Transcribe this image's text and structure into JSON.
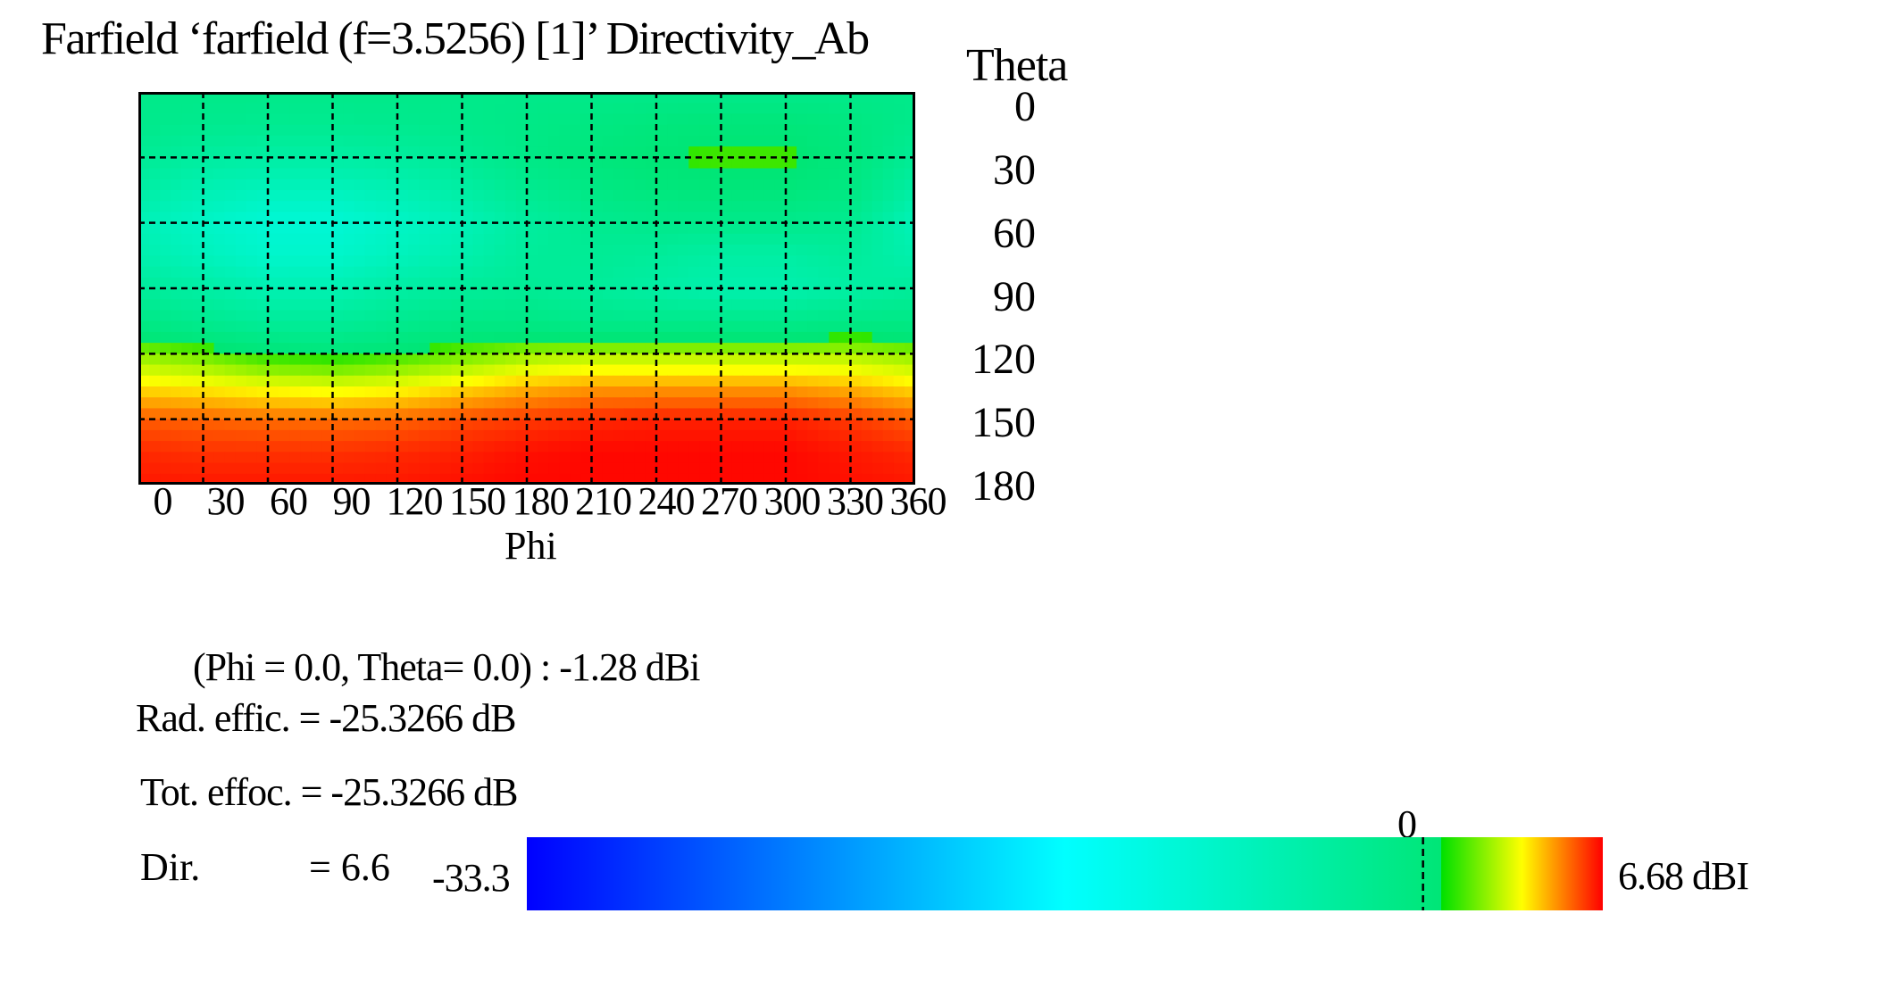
{
  "chart_data": {
    "type": "heatmap",
    "title": "Farfield ‘farfield (f=3.5256) [1]’ Directivity_Ab",
    "xlabel": "Phi",
    "ylabel": "Theta",
    "x_ticks": [
      "0",
      "30",
      "60",
      "90",
      "120",
      "150",
      "180",
      "210",
      "240",
      "270",
      "300",
      "330",
      "360"
    ],
    "y_ticks": [
      "0",
      "30",
      "60",
      "90",
      "120",
      "150",
      "180"
    ],
    "xlim": [
      0,
      360
    ],
    "ylim": [
      0,
      180
    ],
    "grid": true,
    "grid_style": "dashed",
    "x_phi": [
      0,
      30,
      60,
      90,
      120,
      150,
      180,
      210,
      240,
      270,
      300,
      330,
      360
    ],
    "y_theta": [
      0,
      15,
      30,
      45,
      60,
      75,
      90,
      105,
      120,
      135,
      150,
      165,
      180
    ],
    "z_dbi": [
      [
        -1.3,
        -1.3,
        -1.3,
        -1.3,
        -1.3,
        -1.3,
        -1.3,
        -1.3,
        -1.3,
        -1.3,
        -1.3,
        -1.3,
        -1.3
      ],
      [
        -1.5,
        -1.8,
        -2.0,
        -2.0,
        -1.8,
        -1.5,
        -1.0,
        -0.5,
        0.0,
        0.3,
        0.3,
        -0.3,
        -1.5
      ],
      [
        -2.5,
        -3.5,
        -4.0,
        -4.0,
        -3.5,
        -2.5,
        -1.0,
        0.0,
        0.6,
        1.0,
        1.0,
        0.0,
        -2.5
      ],
      [
        -4.0,
        -5.5,
        -6.5,
        -6.5,
        -5.5,
        -4.0,
        -2.0,
        -0.8,
        0.0,
        0.3,
        0.3,
        -0.5,
        -4.0
      ],
      [
        -6.0,
        -7.5,
        -9.0,
        -9.0,
        -7.5,
        -6.0,
        -3.5,
        -2.0,
        -1.5,
        -1.5,
        -1.5,
        -2.0,
        -6.0
      ],
      [
        -5.0,
        -6.5,
        -8.0,
        -8.0,
        -6.5,
        -5.0,
        -3.0,
        -2.5,
        -3.0,
        -4.0,
        -4.0,
        -3.0,
        -5.0
      ],
      [
        -3.0,
        -4.0,
        -5.5,
        -5.5,
        -4.0,
        -3.0,
        -2.5,
        -3.0,
        -4.0,
        -5.0,
        -5.0,
        -4.0,
        -3.0
      ],
      [
        -1.0,
        -2.0,
        -3.0,
        -3.0,
        -2.0,
        -1.0,
        -1.0,
        -1.5,
        -1.5,
        -1.5,
        -1.5,
        -1.0,
        -1.0
      ],
      [
        2.0,
        1.5,
        0.5,
        0.2,
        0.8,
        1.5,
        2.2,
        2.5,
        2.5,
        2.5,
        2.5,
        2.5,
        2.0
      ],
      [
        4.0,
        3.8,
        3.5,
        3.3,
        3.5,
        4.0,
        4.5,
        4.8,
        4.8,
        4.8,
        4.8,
        4.5,
        4.0
      ],
      [
        5.6,
        5.5,
        5.4,
        5.4,
        5.5,
        5.8,
        6.0,
        6.2,
        6.3,
        6.3,
        6.3,
        6.0,
        5.6
      ],
      [
        6.2,
        6.1,
        6.1,
        6.1,
        6.2,
        6.3,
        6.5,
        6.6,
        6.6,
        6.6,
        6.6,
        6.4,
        6.2
      ],
      [
        6.4,
        6.4,
        6.4,
        6.4,
        6.4,
        6.5,
        6.6,
        6.6,
        6.6,
        6.6,
        6.6,
        6.5,
        6.4
      ]
    ],
    "colorbar": {
      "min": -33.3,
      "zero": 0,
      "max": 6.68,
      "min_label": "-33.3",
      "zero_label": "0",
      "max_label": "6.68 dBI",
      "colors": [
        "#0000ff",
        "#00ffff",
        "#00e676",
        "#00e000",
        "#ffff00",
        "#ff0000"
      ]
    }
  },
  "info": {
    "cursor": "(Phi = 0.0, Theta= 0.0) :  -1.28 dBi",
    "rad_effic": "Rad. effic. = -25.3266 dB",
    "tot_effic": "Tot. effoc. = -25.3266 dB",
    "dir_label": "Dir.",
    "dir_value": "= 6.6"
  }
}
